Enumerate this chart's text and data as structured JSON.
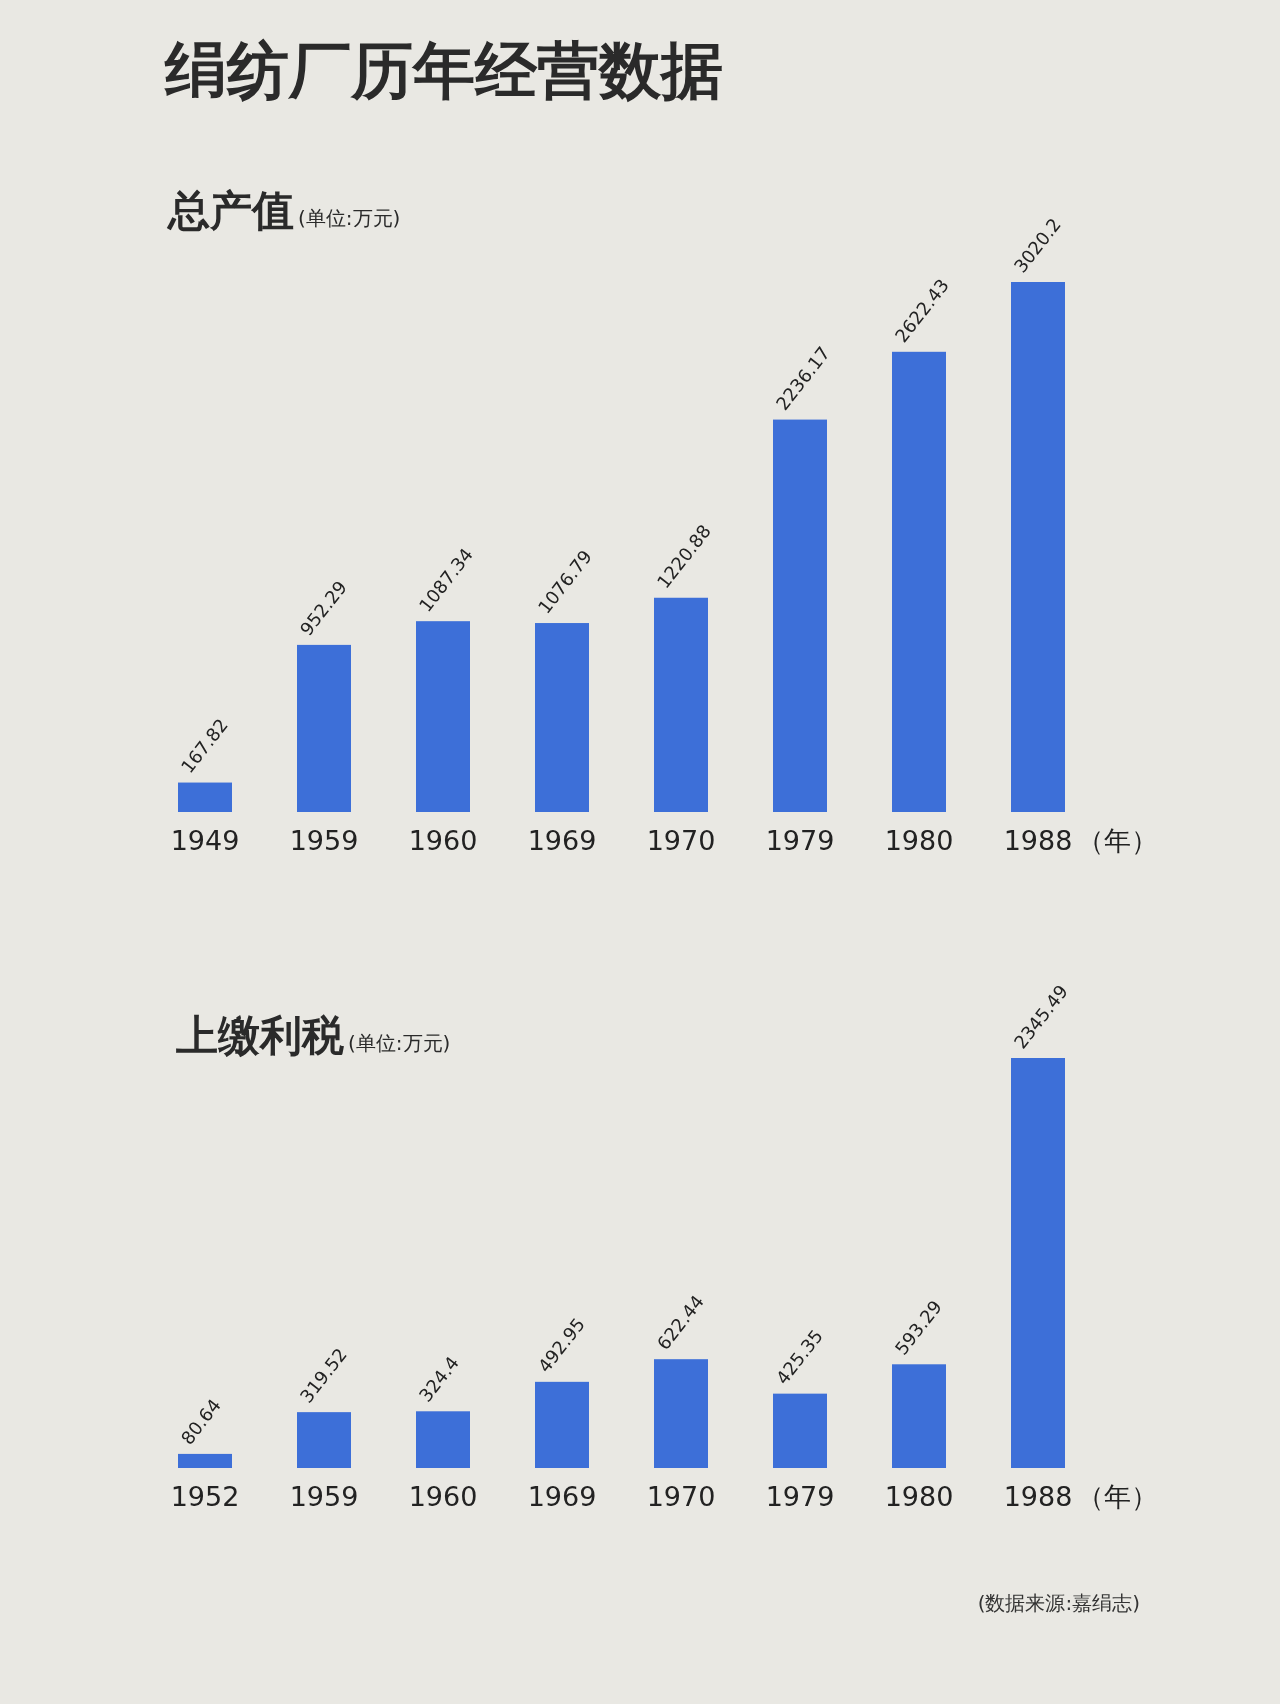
{
  "chart_data": [
    {
      "type": "other",
      "title": "绢纺厂历年经营数据"
    },
    {
      "type": "bar",
      "title": "总产值",
      "subtitle": "(单位:万元)",
      "xlabel": "（年）",
      "categories": [
        "1949",
        "1959",
        "1960",
        "1969",
        "1970",
        "1979",
        "1980",
        "1988"
      ],
      "values": [
        167.82,
        952.29,
        1087.34,
        1076.79,
        1220.88,
        2236.17,
        2622.43,
        3020.2
      ],
      "color": "#3d6fd8",
      "data_labels": true
    },
    {
      "type": "bar",
      "title": "上缴利税",
      "subtitle": "(单位:万元)",
      "xlabel": "（年）",
      "categories": [
        "1952",
        "1959",
        "1960",
        "1969",
        "1970",
        "1979",
        "1980",
        "1988"
      ],
      "values": [
        80.64,
        319.52,
        324.4,
        492.95,
        622.44,
        425.35,
        593.29,
        2345.49
      ],
      "color": "#3d6fd8",
      "data_labels": true,
      "annotations": [
        "(数据来源:嘉绢志)"
      ]
    }
  ]
}
